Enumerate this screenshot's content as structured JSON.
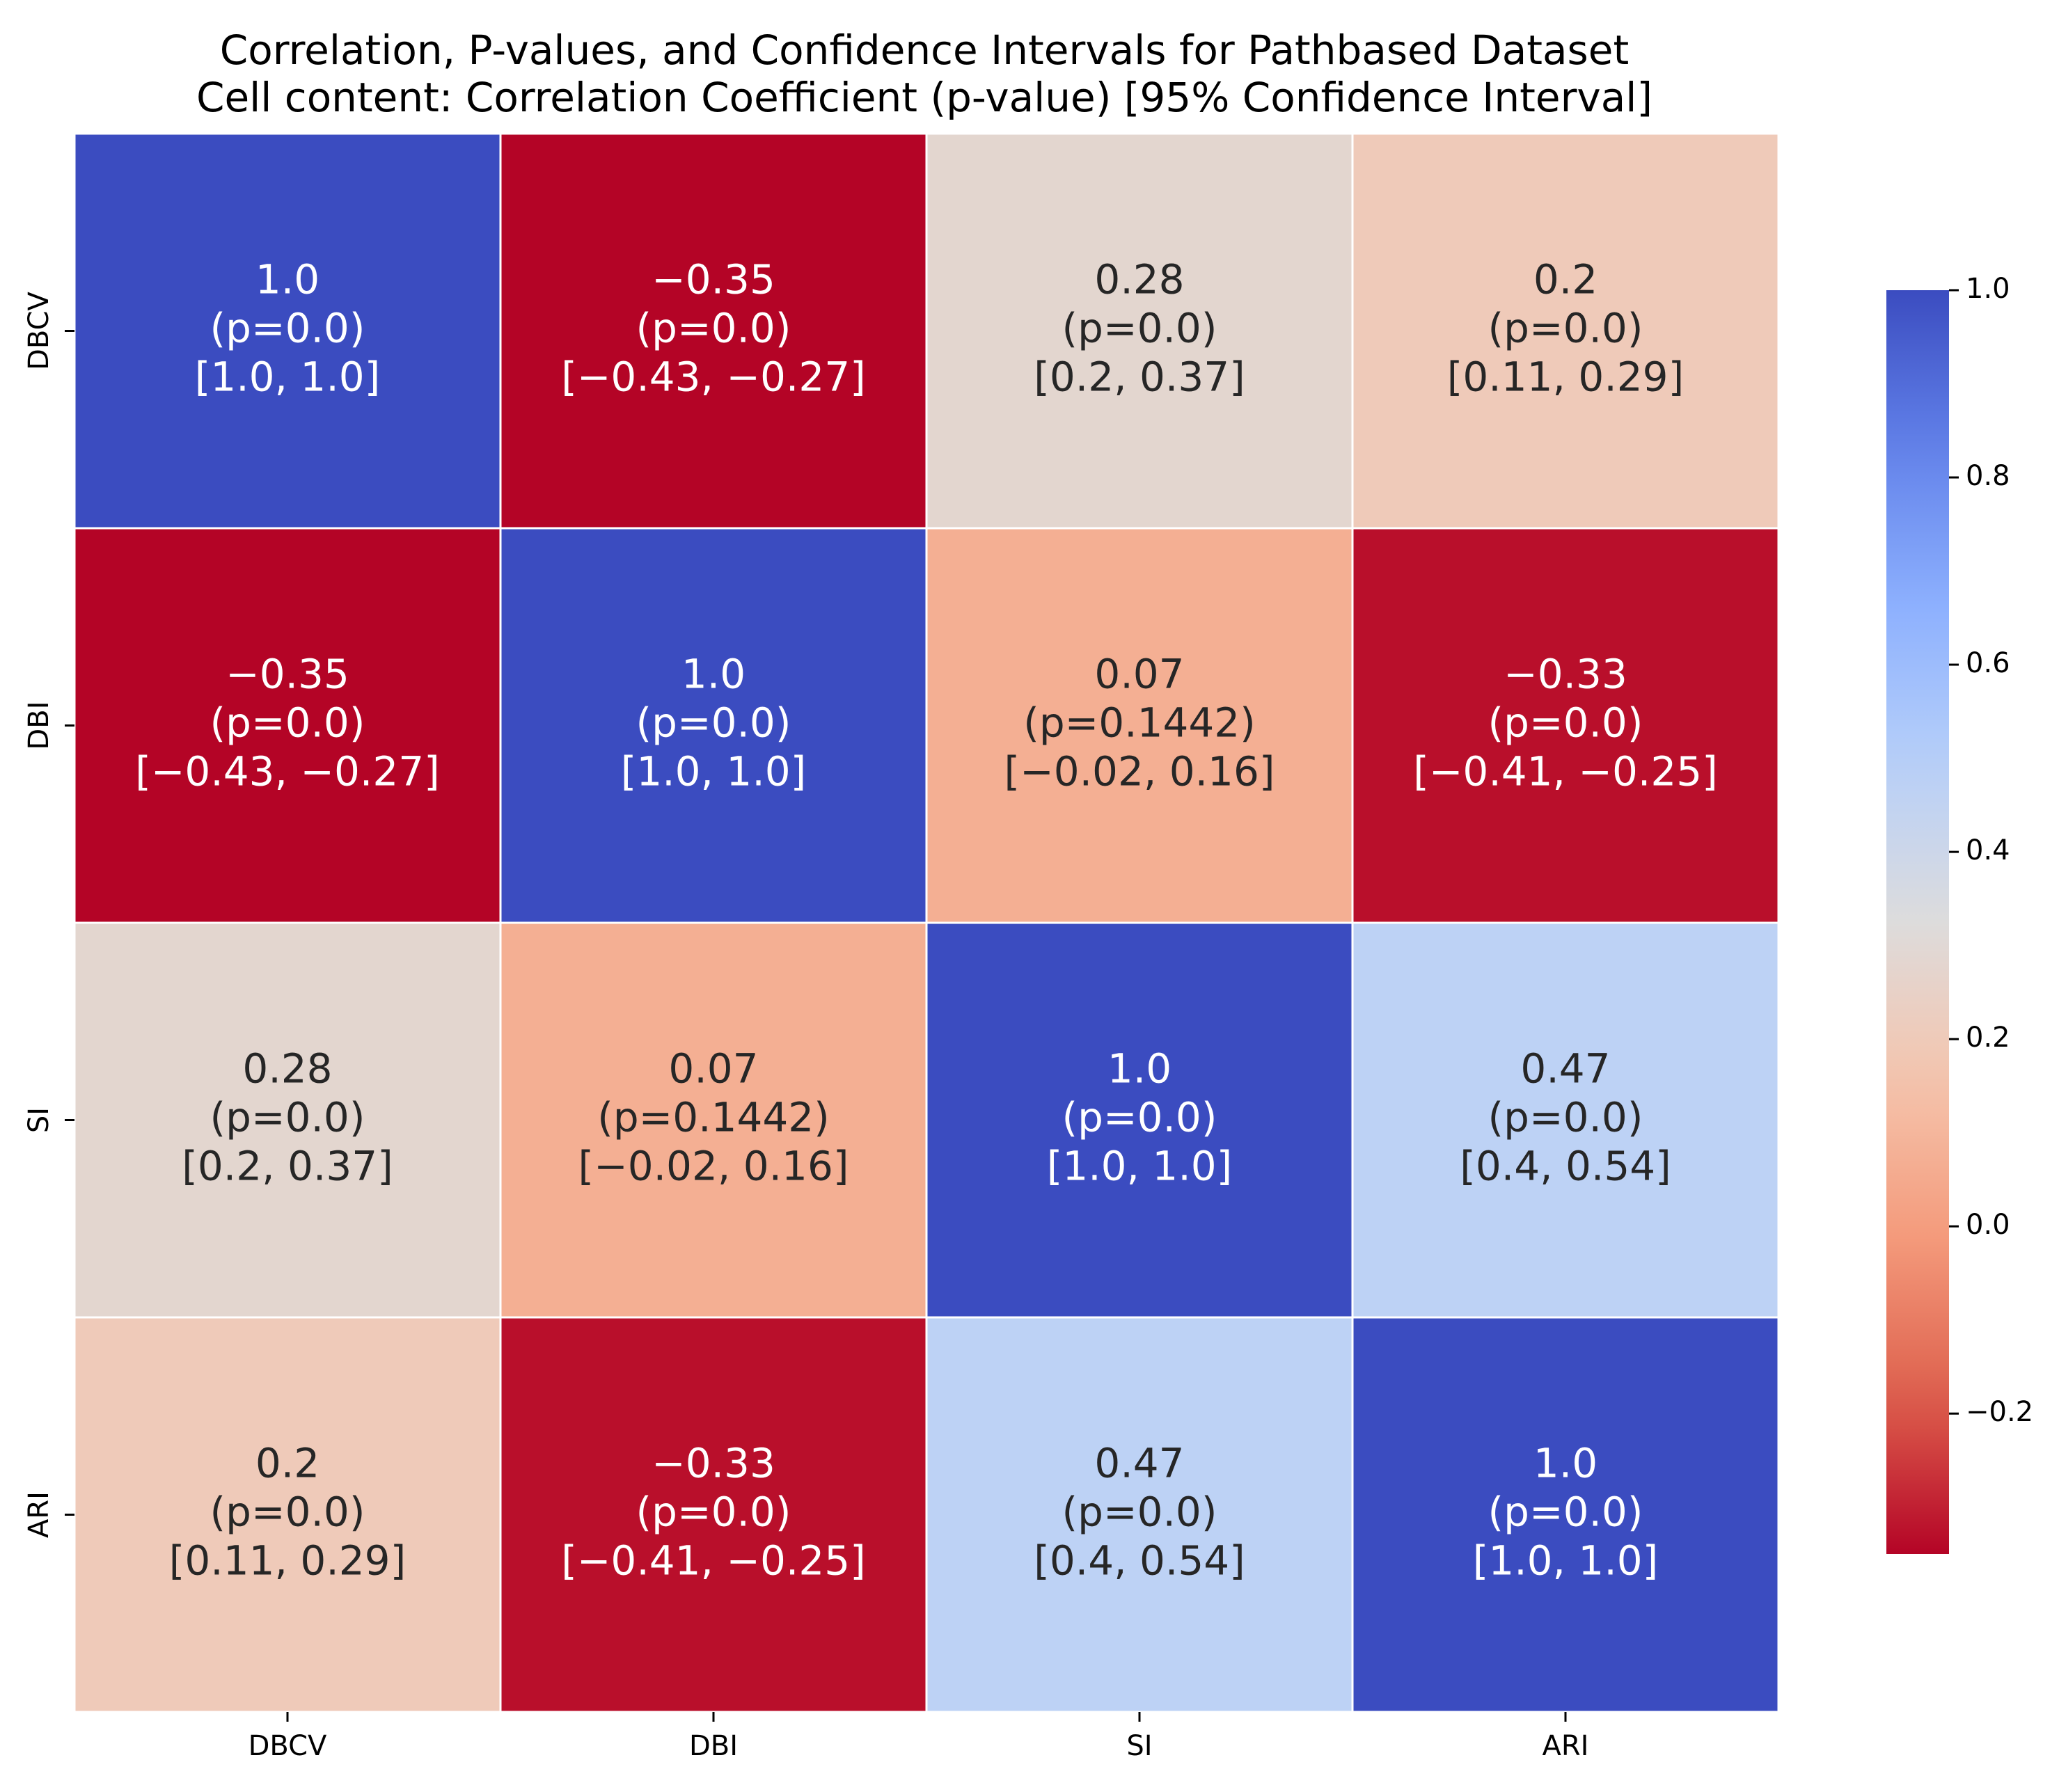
{
  "chart_data": {
    "type": "heatmap",
    "title": "Correlation, P-values, and Confidence Intervals for Pathbased Dataset",
    "subtitle": "Cell content: Correlation Coefficient (p-value) [95% Confidence Interval]",
    "row_labels": [
      "DBCV",
      "DBI",
      "SI",
      "ARI"
    ],
    "col_labels": [
      "DBCV",
      "DBI",
      "SI",
      "ARI"
    ],
    "colormap": "coolwarm_r",
    "colors": {
      "high": "#3a4cc0",
      "mid": "#dddcdc",
      "low": "#b40426",
      "dark_text": "#262626",
      "light_text": "#ffffff",
      "grid_line": "#ffffff"
    },
    "vmin": -0.35,
    "vmax": 1.0,
    "colorbar_ticks": [
      "1.0",
      "0.8",
      "0.6",
      "0.4",
      "0.2",
      "0.0",
      "−0.2"
    ],
    "colorbar_tick_values": [
      1.0,
      0.8,
      0.6,
      0.4,
      0.2,
      0.0,
      -0.2
    ],
    "values": [
      [
        1.0,
        -0.35,
        0.28,
        0.2
      ],
      [
        -0.35,
        1.0,
        0.07,
        -0.33
      ],
      [
        0.28,
        0.07,
        1.0,
        0.47
      ],
      [
        0.2,
        -0.33,
        0.47,
        1.0
      ]
    ],
    "cells": [
      [
        {
          "r": "1.0",
          "p": "(p=0.0)",
          "ci": "[1.0, 1.0]"
        },
        {
          "r": "−0.35",
          "p": "(p=0.0)",
          "ci": "[−0.43, −0.27]"
        },
        {
          "r": "0.28",
          "p": "(p=0.0)",
          "ci": "[0.2, 0.37]"
        },
        {
          "r": "0.2",
          "p": "(p=0.0)",
          "ci": "[0.11, 0.29]"
        }
      ],
      [
        {
          "r": "−0.35",
          "p": "(p=0.0)",
          "ci": "[−0.43, −0.27]"
        },
        {
          "r": "1.0",
          "p": "(p=0.0)",
          "ci": "[1.0, 1.0]"
        },
        {
          "r": "0.07",
          "p": "(p=0.1442)",
          "ci": "[−0.02, 0.16]"
        },
        {
          "r": "−0.33",
          "p": "(p=0.0)",
          "ci": "[−0.41, −0.25]"
        }
      ],
      [
        {
          "r": "0.28",
          "p": "(p=0.0)",
          "ci": "[0.2, 0.37]"
        },
        {
          "r": "0.07",
          "p": "(p=0.1442)",
          "ci": "[−0.02, 0.16]"
        },
        {
          "r": "1.0",
          "p": "(p=0.0)",
          "ci": "[1.0, 1.0]"
        },
        {
          "r": "0.47",
          "p": "(p=0.0)",
          "ci": "[0.4, 0.54]"
        }
      ],
      [
        {
          "r": "0.2",
          "p": "(p=0.0)",
          "ci": "[0.11, 0.29]"
        },
        {
          "r": "−0.33",
          "p": "(p=0.0)",
          "ci": "[−0.41, −0.25]"
        },
        {
          "r": "0.47",
          "p": "(p=0.0)",
          "ci": "[0.4, 0.54]"
        },
        {
          "r": "1.0",
          "p": "(p=0.0)",
          "ci": "[1.0, 1.0]"
        }
      ]
    ]
  }
}
